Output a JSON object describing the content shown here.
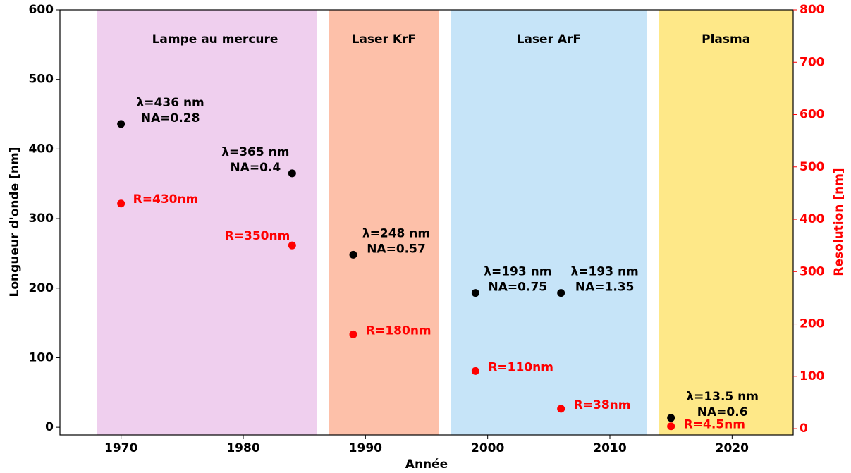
{
  "chart_data": {
    "type": "scatter",
    "xlabel": "Année",
    "ylabel": "Longueur d'onde [nm]",
    "y2label": "Resolution [nm]",
    "xlim": [
      1965,
      2025
    ],
    "xticks": [
      1970,
      1980,
      1990,
      2000,
      2010,
      2020
    ],
    "ylim": [
      -11,
      600
    ],
    "yticks": [
      0,
      100,
      200,
      300,
      400,
      500,
      600
    ],
    "y2lim": [
      -12,
      800
    ],
    "y2ticks": [
      0,
      100,
      200,
      300,
      400,
      500,
      600,
      700,
      800
    ],
    "bands": [
      {
        "label": "Lampe au mercure",
        "start": 1968,
        "end": 1986,
        "color": "#efcfee"
      },
      {
        "label": "Laser KrF",
        "start": 1987,
        "end": 1996,
        "color": "#fdc0a9"
      },
      {
        "label": "Laser ArF",
        "start": 1997,
        "end": 2013,
        "color": "#c6e4f8"
      },
      {
        "label": "Plasma",
        "start": 2014,
        "end": 2025,
        "color": "#fee888"
      }
    ],
    "x": [
      1970,
      1984,
      1989,
      1999,
      2006,
      2015
    ],
    "series": [
      {
        "color": "#000000",
        "values": [
          436,
          365,
          248,
          193,
          193,
          13.5
        ],
        "value_labels": [
          "λ=436 nm",
          "λ=365 nm",
          "λ=248 nm",
          "λ=193 nm",
          "λ=193 nm",
          "λ=13.5 nm"
        ],
        "notes": [
          "NA=0.28",
          "NA=0.4",
          "NA=0.57",
          "NA=0.75",
          "NA=1.35",
          "NA=0.6"
        ]
      },
      {
        "color": "#ff0000",
        "axis": "y2",
        "values": [
          430,
          350,
          180,
          110,
          38,
          4.5
        ],
        "value_labels": [
          "R=430nm",
          "R=350nm",
          "R=180nm",
          "R=110nm",
          "R=38nm",
          "R=4.5nm"
        ]
      }
    ]
  }
}
